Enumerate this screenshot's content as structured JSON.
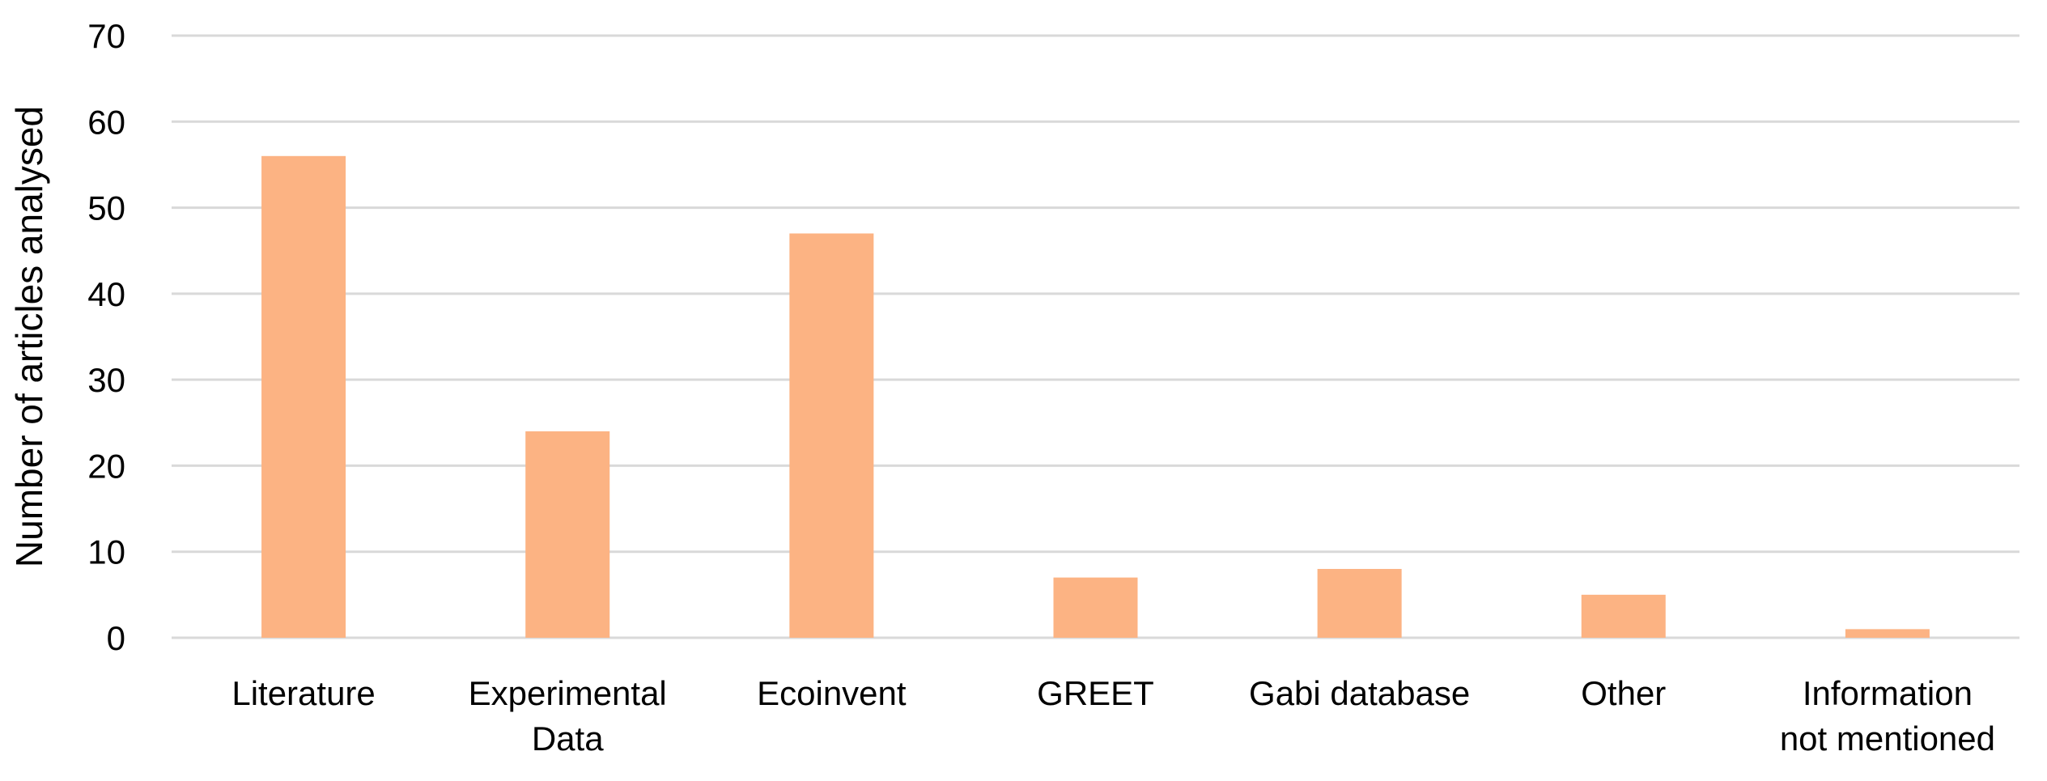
{
  "chart_data": {
    "type": "bar",
    "title": "",
    "xlabel": "",
    "ylabel": "Number of articles analysed",
    "categories": [
      [
        "Literature"
      ],
      [
        "Experimental",
        "Data"
      ],
      [
        "Ecoinvent"
      ],
      [
        "GREET"
      ],
      [
        "Gabi database"
      ],
      [
        "Other"
      ],
      [
        "Information",
        "not mentioned"
      ]
    ],
    "values": [
      56,
      24,
      47,
      7,
      8,
      5,
      1
    ],
    "ylim": [
      0,
      70
    ],
    "yticks": [
      0,
      10,
      20,
      30,
      40,
      50,
      60,
      70
    ],
    "grid": true,
    "legend": "none",
    "bar_color": "#fcb383"
  }
}
